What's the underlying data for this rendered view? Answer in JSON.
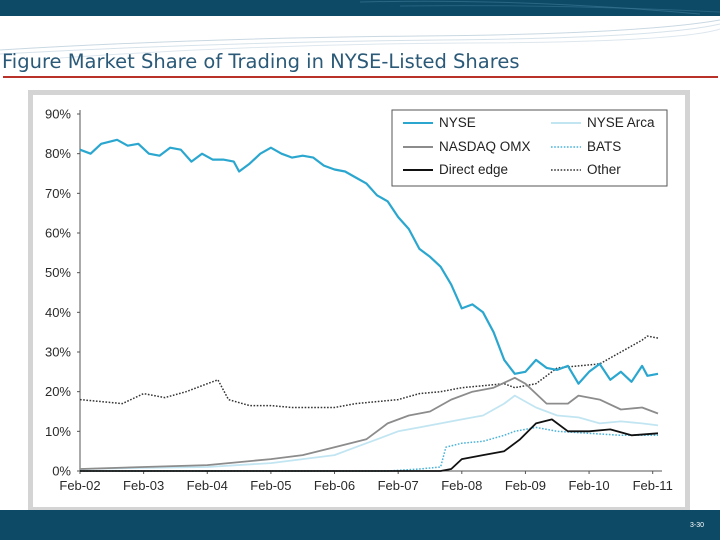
{
  "slide": {
    "title": "Figure Market Share of Trading in NYSE-Listed Shares",
    "slide_number": "3-30"
  },
  "colors": {
    "header_bar": "#0d4a66",
    "title_text": "#2b5a78",
    "title_rule": "#b8322a",
    "NYSE": "#2ba7cf",
    "NYSE Arca": "#c2e5f2",
    "NASDAQ OMX": "#8c8c8c",
    "BATS": "#49b3da",
    "Direct edge": "#111111",
    "Other": "#333333"
  },
  "chart_data": {
    "type": "line",
    "title": "",
    "xlabel": "",
    "ylabel": "",
    "x_ticks": [
      "Feb-02",
      "Feb-03",
      "Feb-04",
      "Feb-05",
      "Feb-06",
      "Feb-07",
      "Feb-08",
      "Feb-09",
      "Feb-10",
      "Feb-11"
    ],
    "y_ticks": [
      "0%",
      "10%",
      "20%",
      "30%",
      "40%",
      "50%",
      "60%",
      "70%",
      "80%",
      "90%"
    ],
    "xlim": [
      "2002-02",
      "2011-03"
    ],
    "ylim": [
      0,
      90
    ],
    "grid": false,
    "legend_position": "top-right",
    "series": [
      {
        "name": "NYSE",
        "style": "solid",
        "points": [
          [
            "2002-02",
            81
          ],
          [
            "2002-04",
            80
          ],
          [
            "2002-06",
            82.5
          ],
          [
            "2002-09",
            83.5
          ],
          [
            "2002-11",
            82
          ],
          [
            "2003-01",
            82.5
          ],
          [
            "2003-03",
            80
          ],
          [
            "2003-05",
            79.5
          ],
          [
            "2003-07",
            81.5
          ],
          [
            "2003-09",
            81
          ],
          [
            "2003-11",
            78
          ],
          [
            "2004-01",
            80
          ],
          [
            "2004-03",
            78.5
          ],
          [
            "2004-05",
            78.5
          ],
          [
            "2004-07",
            78
          ],
          [
            "2004-08",
            75.5
          ],
          [
            "2004-10",
            77.5
          ],
          [
            "2004-12",
            80
          ],
          [
            "2005-02",
            81.5
          ],
          [
            "2005-04",
            80
          ],
          [
            "2005-06",
            79
          ],
          [
            "2005-08",
            79.5
          ],
          [
            "2005-10",
            79
          ],
          [
            "2005-12",
            77
          ],
          [
            "2006-02",
            76
          ],
          [
            "2006-04",
            75.5
          ],
          [
            "2006-06",
            74
          ],
          [
            "2006-08",
            72.5
          ],
          [
            "2006-10",
            69.5
          ],
          [
            "2006-12",
            68
          ],
          [
            "2007-02",
            64
          ],
          [
            "2007-04",
            61
          ],
          [
            "2007-06",
            56
          ],
          [
            "2007-08",
            54
          ],
          [
            "2007-10",
            51.5
          ],
          [
            "2007-12",
            47
          ],
          [
            "2008-02",
            41
          ],
          [
            "2008-04",
            42
          ],
          [
            "2008-06",
            40
          ],
          [
            "2008-08",
            35
          ],
          [
            "2008-10",
            28
          ],
          [
            "2008-12",
            24.5
          ],
          [
            "2009-02",
            25
          ],
          [
            "2009-04",
            28
          ],
          [
            "2009-06",
            26
          ],
          [
            "2009-08",
            25.5
          ],
          [
            "2009-10",
            26.5
          ],
          [
            "2009-12",
            22
          ],
          [
            "2010-02",
            25
          ],
          [
            "2010-04",
            27
          ],
          [
            "2010-06",
            23
          ],
          [
            "2010-08",
            25
          ],
          [
            "2010-10",
            22.5
          ],
          [
            "2010-12",
            26.5
          ],
          [
            "2011-01",
            24
          ],
          [
            "2011-03",
            24.5
          ]
        ]
      },
      {
        "name": "NYSE Arca",
        "style": "solid",
        "points": [
          [
            "2002-02",
            0.5
          ],
          [
            "2003-02",
            0.8
          ],
          [
            "2004-02",
            1
          ],
          [
            "2005-02",
            2
          ],
          [
            "2005-08",
            3
          ],
          [
            "2006-02",
            4
          ],
          [
            "2006-06",
            6
          ],
          [
            "2006-10",
            8
          ],
          [
            "2007-02",
            10
          ],
          [
            "2007-06",
            11
          ],
          [
            "2007-10",
            12
          ],
          [
            "2008-02",
            13
          ],
          [
            "2008-06",
            14
          ],
          [
            "2008-10",
            17
          ],
          [
            "2008-12",
            19
          ],
          [
            "2009-04",
            16
          ],
          [
            "2009-08",
            14
          ],
          [
            "2009-12",
            13.5
          ],
          [
            "2010-04",
            12
          ],
          [
            "2010-08",
            12.5
          ],
          [
            "2010-12",
            12
          ],
          [
            "2011-03",
            11.5
          ]
        ]
      },
      {
        "name": "NASDAQ OMX",
        "style": "solid",
        "points": [
          [
            "2002-02",
            0.5
          ],
          [
            "2003-02",
            1
          ],
          [
            "2004-02",
            1.5
          ],
          [
            "2004-06",
            2
          ],
          [
            "2005-02",
            3
          ],
          [
            "2005-08",
            4
          ],
          [
            "2006-02",
            6
          ],
          [
            "2006-08",
            8
          ],
          [
            "2006-12",
            12
          ],
          [
            "2007-04",
            14
          ],
          [
            "2007-08",
            15
          ],
          [
            "2007-12",
            18
          ],
          [
            "2008-04",
            20
          ],
          [
            "2008-08",
            21
          ],
          [
            "2008-12",
            23.5
          ],
          [
            "2009-02",
            22
          ],
          [
            "2009-06",
            17
          ],
          [
            "2009-10",
            17
          ],
          [
            "2009-12",
            19
          ],
          [
            "2010-04",
            18
          ],
          [
            "2010-08",
            15.5
          ],
          [
            "2010-12",
            16
          ],
          [
            "2011-03",
            14.5
          ]
        ]
      },
      {
        "name": "BATS",
        "style": "dotted",
        "points": [
          [
            "2002-02",
            0
          ],
          [
            "2006-12",
            0
          ],
          [
            "2007-06",
            0.5
          ],
          [
            "2007-10",
            1
          ],
          [
            "2007-11",
            6
          ],
          [
            "2008-02",
            7
          ],
          [
            "2008-06",
            7.5
          ],
          [
            "2008-10",
            9
          ],
          [
            "2008-12",
            10
          ],
          [
            "2009-04",
            11
          ],
          [
            "2009-08",
            10
          ],
          [
            "2010-02",
            9.5
          ],
          [
            "2010-08",
            9
          ],
          [
            "2011-03",
            9
          ]
        ]
      },
      {
        "name": "Direct edge",
        "style": "solid",
        "points": [
          [
            "2002-02",
            0
          ],
          [
            "2007-10",
            0
          ],
          [
            "2007-12",
            0.5
          ],
          [
            "2008-02",
            3
          ],
          [
            "2008-06",
            4
          ],
          [
            "2008-10",
            5
          ],
          [
            "2009-01",
            8
          ],
          [
            "2009-04",
            12
          ],
          [
            "2009-07",
            13
          ],
          [
            "2009-10",
            10
          ],
          [
            "2010-02",
            10
          ],
          [
            "2010-06",
            10.5
          ],
          [
            "2010-10",
            9
          ],
          [
            "2011-03",
            9.5
          ]
        ]
      },
      {
        "name": "Other",
        "style": "dotted",
        "points": [
          [
            "2002-02",
            18
          ],
          [
            "2002-06",
            17.5
          ],
          [
            "2002-10",
            17
          ],
          [
            "2003-02",
            19.5
          ],
          [
            "2003-06",
            18.5
          ],
          [
            "2003-10",
            20
          ],
          [
            "2004-02",
            22
          ],
          [
            "2004-04",
            23
          ],
          [
            "2004-06",
            18
          ],
          [
            "2004-10",
            16.5
          ],
          [
            "2005-02",
            16.5
          ],
          [
            "2005-06",
            16
          ],
          [
            "2005-10",
            16
          ],
          [
            "2006-02",
            16
          ],
          [
            "2006-06",
            17
          ],
          [
            "2006-10",
            17.5
          ],
          [
            "2007-02",
            18
          ],
          [
            "2007-06",
            19.5
          ],
          [
            "2007-10",
            20
          ],
          [
            "2008-02",
            21
          ],
          [
            "2008-06",
            21.5
          ],
          [
            "2008-10",
            22
          ],
          [
            "2008-12",
            21
          ],
          [
            "2009-04",
            22
          ],
          [
            "2009-08",
            26
          ],
          [
            "2009-12",
            26.5
          ],
          [
            "2010-04",
            27
          ],
          [
            "2010-08",
            30
          ],
          [
            "2010-12",
            33
          ],
          [
            "2011-01",
            34
          ],
          [
            "2011-03",
            33.5
          ]
        ]
      }
    ]
  }
}
